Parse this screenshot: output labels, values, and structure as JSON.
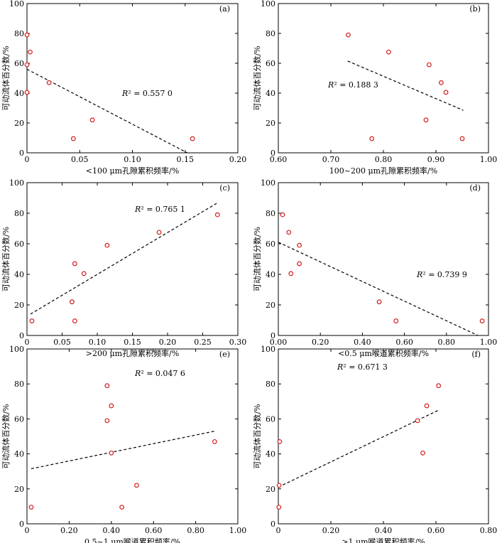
{
  "y_axis_label": "可动流体百分数/%",
  "chart_data": [
    {
      "type": "scatter",
      "panel_label": "(a)",
      "xlabel": "<100 μm孔隙累积频率/%",
      "ylabel": "可动流体百分数/%",
      "xlim": [
        0,
        0.2
      ],
      "ylim": [
        0,
        100
      ],
      "xticks": [
        "0",
        "0.05",
        "0.10",
        "0.15",
        "0.20"
      ],
      "yticks": [
        "0",
        "20",
        "40",
        "60",
        "80",
        "100"
      ],
      "r2_prefix": "R",
      "r2_value": "² = 0.557 0",
      "points": [
        [
          0.0,
          79
        ],
        [
          0.003,
          67.5
        ],
        [
          0.0,
          59
        ],
        [
          0.0,
          40.5
        ],
        [
          0.021,
          47
        ],
        [
          0.062,
          22
        ],
        [
          0.044,
          9.5
        ],
        [
          0.157,
          9.5
        ]
      ],
      "fit": {
        "x": [
          0.0,
          0.152
        ],
        "y": [
          56,
          0
        ]
      }
    },
    {
      "type": "scatter",
      "panel_label": "(b)",
      "xlabel": "100~200 μm孔隙累积频率/%",
      "ylabel": "可动流体百分数/%",
      "xlim": [
        0.6,
        1.0
      ],
      "ylim": [
        0,
        100
      ],
      "xticks": [
        "0.60",
        "0.70",
        "0.80",
        "0.90",
        "1.00"
      ],
      "yticks": [
        "0",
        "20",
        "40",
        "60",
        "80",
        "100"
      ],
      "r2_prefix": "R",
      "r2_value": "² = 0.188 3",
      "points": [
        [
          0.733,
          79
        ],
        [
          0.81,
          67.5
        ],
        [
          0.887,
          59
        ],
        [
          0.91,
          47
        ],
        [
          0.919,
          40.5
        ],
        [
          0.881,
          22
        ],
        [
          0.778,
          9.5
        ],
        [
          0.95,
          9.5
        ]
      ],
      "fit": {
        "x": [
          0.732,
          0.952
        ],
        "y": [
          61.5,
          28.5
        ]
      }
    },
    {
      "type": "scatter",
      "panel_label": "(c)",
      "xlabel": ">200 μm孔隙累积频率/%",
      "ylabel": "可动流体百分数/%",
      "xlim": [
        0,
        0.3
      ],
      "ylim": [
        0,
        100
      ],
      "xticks": [
        "0",
        "0.05",
        "0.10",
        "0.15",
        "0.20",
        "0.25",
        "0.30"
      ],
      "yticks": [
        "0",
        "20",
        "40",
        "60",
        "80",
        "100"
      ],
      "r2_prefix": "R",
      "r2_value": "² = 0.765 1",
      "points": [
        [
          0.271,
          79
        ],
        [
          0.188,
          67.5
        ],
        [
          0.114,
          59
        ],
        [
          0.068,
          47
        ],
        [
          0.081,
          40.5
        ],
        [
          0.064,
          22
        ],
        [
          0.068,
          9.5
        ],
        [
          0.007,
          9.5
        ]
      ],
      "fit": {
        "x": [
          0.005,
          0.27
        ],
        "y": [
          14,
          86.5
        ]
      }
    },
    {
      "type": "scatter",
      "panel_label": "(d)",
      "xlabel": "<0.5 μm喉道累积频率/%",
      "ylabel": "可动流体百分数/%",
      "xlim": [
        0,
        1.0
      ],
      "ylim": [
        0,
        100
      ],
      "xticks": [
        "0.00",
        "0.20",
        "0.40",
        "0.60",
        "0.80",
        "1.00"
      ],
      "yticks": [
        "0",
        "20",
        "40",
        "60",
        "80",
        "100"
      ],
      "r2_prefix": "R",
      "r2_value": "² = 0.739 9",
      "points": [
        [
          0.02,
          79
        ],
        [
          0.05,
          67.5
        ],
        [
          0.1,
          59
        ],
        [
          0.1,
          47
        ],
        [
          0.06,
          40.5
        ],
        [
          0.48,
          22
        ],
        [
          0.56,
          9.5
        ],
        [
          0.97,
          9.5
        ]
      ],
      "fit": {
        "x": [
          0.0,
          0.95
        ],
        "y": [
          61,
          0
        ]
      }
    },
    {
      "type": "scatter",
      "panel_label": "(e)",
      "xlabel": "0.5~1 μm喉道累积频率/%",
      "ylabel": "可动流体百分数/%",
      "xlim": [
        0,
        1.0
      ],
      "ylim": [
        0,
        100
      ],
      "xticks": [
        "0",
        "0.20",
        "0.40",
        "0.60",
        "0.80",
        "1.00"
      ],
      "yticks": [
        "0",
        "20",
        "40",
        "60",
        "80",
        "100"
      ],
      "r2_prefix": "R",
      "r2_value": "² = 0.047 6",
      "points": [
        [
          0.38,
          79
        ],
        [
          0.4,
          67.5
        ],
        [
          0.38,
          59
        ],
        [
          0.4,
          40.5
        ],
        [
          0.89,
          47
        ],
        [
          0.52,
          22
        ],
        [
          0.45,
          9.5
        ],
        [
          0.02,
          9.5
        ]
      ],
      "fit": {
        "x": [
          0.02,
          0.89
        ],
        "y": [
          31.5,
          53
        ]
      }
    },
    {
      "type": "scatter",
      "panel_label": "(f)",
      "xlabel": ">1 μm喉道累积频率/%",
      "ylabel": "可动流体百分数/%",
      "xlim": [
        0,
        0.8
      ],
      "ylim": [
        0,
        100
      ],
      "xticks": [
        "0",
        "0.20",
        "0.40",
        "0.60",
        "0.80"
      ],
      "yticks": [
        "0",
        "20",
        "40",
        "60",
        "80",
        "100"
      ],
      "r2_prefix": "R",
      "r2_value": "² = 0.671 3",
      "points": [
        [
          0.61,
          79
        ],
        [
          0.565,
          67.5
        ],
        [
          0.53,
          59
        ],
        [
          0.005,
          47
        ],
        [
          0.55,
          40.5
        ],
        [
          0.003,
          22
        ],
        [
          0.002,
          9.5
        ]
      ],
      "fit": {
        "x": [
          0.0,
          0.61
        ],
        "y": [
          21,
          65
        ]
      }
    }
  ]
}
